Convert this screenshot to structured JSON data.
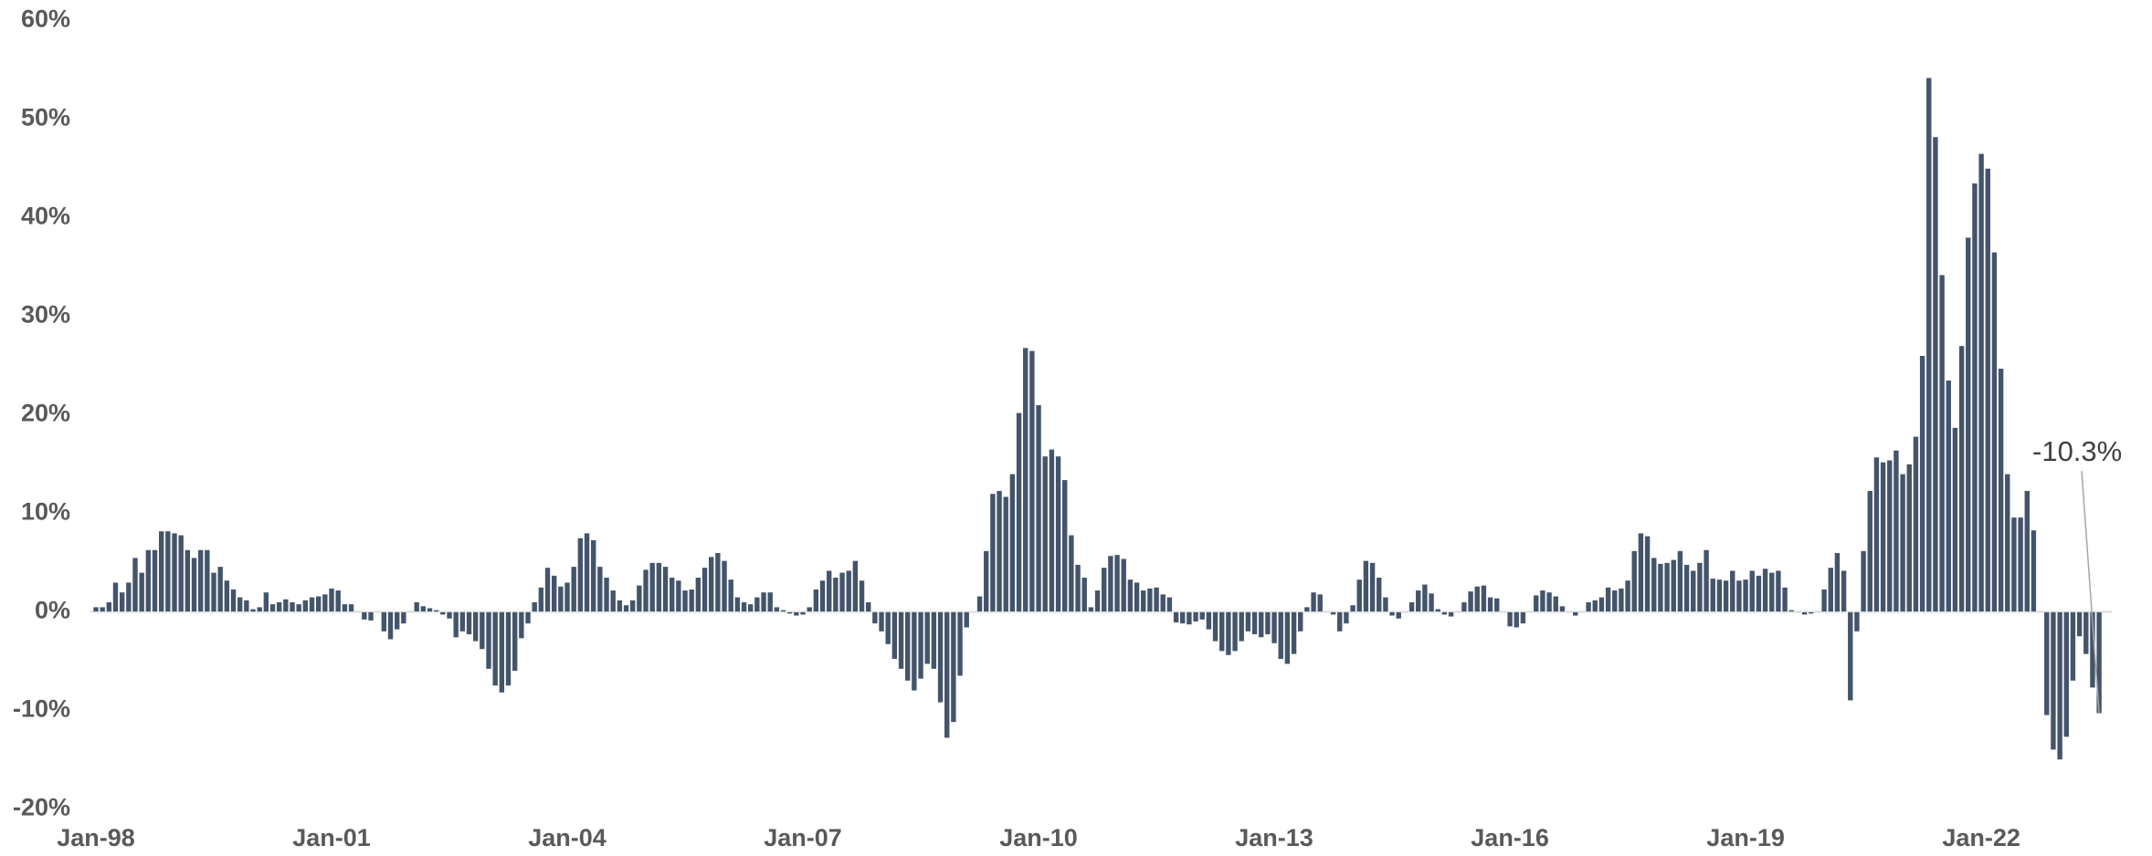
{
  "chart_data": {
    "type": "bar",
    "color": "#44546a",
    "ylim": [
      -20,
      60
    ],
    "yticks": [
      {
        "value": -20,
        "label": "-20%"
      },
      {
        "value": -10,
        "label": "-10%"
      },
      {
        "value": 0,
        "label": "0%"
      },
      {
        "value": 10,
        "label": "10%"
      },
      {
        "value": 20,
        "label": "20%"
      },
      {
        "value": 30,
        "label": "30%"
      },
      {
        "value": 40,
        "label": "40%"
      },
      {
        "value": 50,
        "label": "50%"
      },
      {
        "value": 60,
        "label": "60%"
      }
    ],
    "annotation": "-10.3%",
    "categories": [
      "Jan-98",
      null,
      null,
      null,
      null,
      null,
      null,
      null,
      null,
      null,
      null,
      null,
      null,
      null,
      null,
      null,
      null,
      null,
      null,
      null,
      null,
      null,
      null,
      null,
      null,
      null,
      null,
      null,
      null,
      null,
      null,
      null,
      null,
      null,
      null,
      null,
      "Jan-01",
      null,
      null,
      null,
      null,
      null,
      null,
      null,
      null,
      null,
      null,
      null,
      null,
      null,
      null,
      null,
      null,
      null,
      null,
      null,
      null,
      null,
      null,
      null,
      null,
      null,
      null,
      null,
      null,
      null,
      null,
      null,
      null,
      null,
      null,
      null,
      "Jan-04",
      null,
      null,
      null,
      null,
      null,
      null,
      null,
      null,
      null,
      null,
      null,
      null,
      null,
      null,
      null,
      null,
      null,
      null,
      null,
      null,
      null,
      null,
      null,
      null,
      null,
      null,
      null,
      null,
      null,
      null,
      null,
      null,
      null,
      null,
      null,
      "Jan-07",
      null,
      null,
      null,
      null,
      null,
      null,
      null,
      null,
      null,
      null,
      null,
      null,
      null,
      null,
      null,
      null,
      null,
      null,
      null,
      null,
      null,
      null,
      null,
      null,
      null,
      null,
      null,
      null,
      null,
      null,
      null,
      null,
      null,
      null,
      null,
      "Jan-10",
      null,
      null,
      null,
      null,
      null,
      null,
      null,
      null,
      null,
      null,
      null,
      null,
      null,
      null,
      null,
      null,
      null,
      null,
      null,
      null,
      null,
      null,
      null,
      null,
      null,
      null,
      null,
      null,
      null,
      null,
      null,
      null,
      null,
      null,
      null,
      "Jan-13",
      null,
      null,
      null,
      null,
      null,
      null,
      null,
      null,
      null,
      null,
      null,
      null,
      null,
      null,
      null,
      null,
      null,
      null,
      null,
      null,
      null,
      null,
      null,
      null,
      null,
      null,
      null,
      null,
      null,
      null,
      null,
      null,
      null,
      null,
      null,
      "Jan-16",
      null,
      null,
      null,
      null,
      null,
      null,
      null,
      null,
      null,
      null,
      null,
      null,
      null,
      null,
      null,
      null,
      null,
      null,
      null,
      null,
      null,
      null,
      null,
      null,
      null,
      null,
      null,
      null,
      null,
      null,
      null,
      null,
      null,
      null,
      null,
      "Jan-19",
      null,
      null,
      null,
      null,
      null,
      null,
      null,
      null,
      null,
      null,
      null,
      null,
      null,
      null,
      null,
      null,
      null,
      null,
      null,
      null,
      null,
      null,
      null,
      null,
      null,
      null,
      null,
      null,
      null,
      null,
      null,
      null,
      null,
      null,
      null,
      "Jan-22",
      null,
      null,
      null,
      null,
      null,
      null,
      null,
      null,
      null,
      null,
      null,
      null,
      null,
      null,
      null,
      null,
      null,
      null
    ],
    "values": [
      0.5,
      0.5,
      1,
      3,
      2,
      3,
      5.5,
      4,
      6.3,
      6.3,
      8.2,
      8.2,
      8,
      7.8,
      6.3,
      5.5,
      6.3,
      6.3,
      4,
      4.6,
      3.2,
      2.3,
      1.5,
      1.2,
      0.3,
      0.5,
      2,
      0.8,
      1,
      1.3,
      1,
      0.8,
      1.2,
      1.5,
      1.6,
      1.8,
      2.4,
      2.2,
      0.8,
      0.8,
      0,
      -0.8,
      -0.9,
      0,
      -2,
      -2.8,
      -1.8,
      -1.2,
      0,
      1,
      0.6,
      0.4,
      0.2,
      -0.3,
      -0.7,
      -2.6,
      -2,
      -2.3,
      -3,
      -3.8,
      -5.8,
      -7.5,
      -8.2,
      -7.5,
      -6,
      -2.7,
      -1.2,
      1,
      2.5,
      4.5,
      3.7,
      2.6,
      3,
      4.6,
      7.5,
      8,
      7.3,
      4.6,
      3.5,
      2.2,
      1.2,
      0.7,
      1.2,
      2.7,
      4.3,
      5,
      5,
      4.6,
      3.5,
      3.2,
      2.2,
      2.3,
      3.5,
      4.5,
      5.6,
      6,
      5.2,
      3.3,
      1.5,
      1,
      0.8,
      1.5,
      2,
      2,
      0.5,
      0.2,
      -0.2,
      -0.4,
      -0.3,
      0.5,
      2.3,
      3.2,
      4.2,
      3.5,
      4,
      4.2,
      5.2,
      3.2,
      1,
      -1.2,
      -2,
      -3.3,
      -4.8,
      -5.8,
      -7,
      -8,
      -6.8,
      -5.3,
      -5.8,
      -9.2,
      -12.8,
      -11.2,
      -6.5,
      -1.6,
      0,
      1.6,
      6.2,
      12,
      12.3,
      11.7,
      14,
      20.2,
      26.8,
      26.5,
      21,
      15.8,
      16.5,
      15.8,
      13.4,
      7.8,
      4.8,
      3.5,
      0.5,
      2.2,
      4.5,
      5.7,
      5.8,
      5.4,
      3.3,
      3,
      2.2,
      2.4,
      2.5,
      1.8,
      1.5,
      -1.1,
      -1.2,
      -1.3,
      -1,
      -0.8,
      -1.8,
      -3,
      -4,
      -4.4,
      -4,
      -3,
      -2,
      -2.3,
      -2.6,
      -2.3,
      -3.2,
      -4.8,
      -5.3,
      -4.3,
      -2,
      0.5,
      2,
      1.8,
      0,
      -0.3,
      -2,
      -1.2,
      0.7,
      3.3,
      5.2,
      5,
      3.5,
      1.5,
      -0.4,
      -0.7,
      0,
      1,
      2.2,
      2.8,
      1.9,
      0.3,
      -0.3,
      -0.5,
      0,
      1,
      2.1,
      2.6,
      2.7,
      1.5,
      1.4,
      0,
      -1.5,
      -1.6,
      -1.2,
      0,
      1.7,
      2.2,
      2,
      1.6,
      0.6,
      0,
      -0.4,
      0,
      1,
      1.2,
      1.5,
      2.5,
      2.2,
      2.4,
      3.2,
      6.2,
      8,
      7.7,
      5.5,
      4.9,
      5,
      5.3,
      6.2,
      4.8,
      4.2,
      5,
      6.3,
      3.4,
      3.3,
      3.2,
      4.2,
      3.2,
      3.3,
      4.2,
      3.7,
      4.4,
      4,
      4.2,
      2.5,
      0.2,
      0,
      -0.3,
      -0.2,
      0,
      2.3,
      4.5,
      6,
      4.2,
      -9,
      -2,
      6.2,
      12.3,
      15.7,
      15.2,
      15.4,
      16.4,
      14,
      15,
      17.8,
      26,
      54.2,
      48.2,
      34.2,
      23.5,
      18.7,
      27,
      38,
      43.5,
      46.5,
      45,
      36.5,
      24.7,
      14,
      9.6,
      9.6,
      12.3,
      8.3,
      0,
      -10.5,
      -14,
      -15,
      -12.7,
      -7,
      -2.5,
      -4.3,
      -7.7,
      -10.3
    ]
  }
}
